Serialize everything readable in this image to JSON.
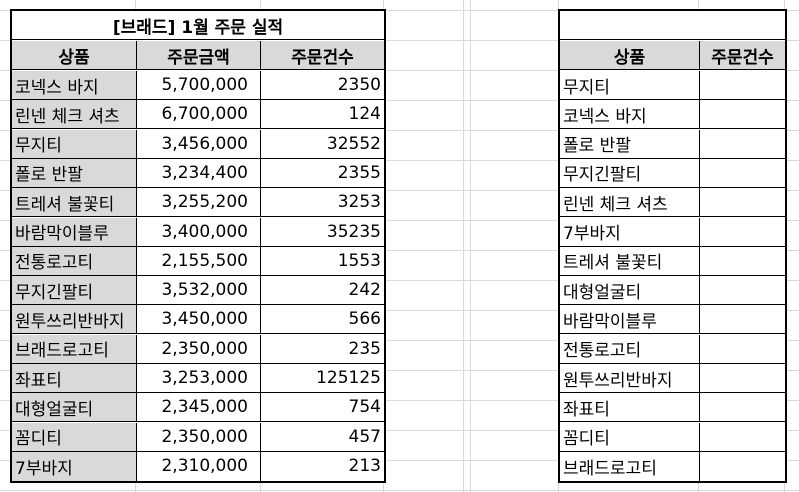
{
  "left_table": {
    "title": "[브래드] 1월 주문 실적",
    "headers": [
      "상품",
      "주문금액",
      "주문건수"
    ],
    "rows": [
      [
        "코넥스 바지",
        "5,700,000",
        "2350"
      ],
      [
        "린넨 체크 셔츠",
        "6,700,000",
        "124"
      ],
      [
        "무지티",
        "3,456,000",
        "32552"
      ],
      [
        "폴로 반팔",
        "3,234,400",
        "2355"
      ],
      [
        "트레셔 불꽃티",
        "3,255,200",
        "3253"
      ],
      [
        "바람막이블루",
        "3,400,000",
        "35235"
      ],
      [
        "전통로고티",
        "2,155,500",
        "1553"
      ],
      [
        "무지긴팔티",
        "3,532,000",
        "242"
      ],
      [
        "원투쓰리반바지",
        "3,450,000",
        "566"
      ],
      [
        "브래드로고티",
        "2,350,000",
        "235"
      ],
      [
        "좌표티",
        "3,253,000",
        "125125"
      ],
      [
        "대형얼굴티",
        "2,345,000",
        "754"
      ],
      [
        "꼼디티",
        "2,350,000",
        "457"
      ],
      [
        "7부바지",
        "2,310,000",
        "213"
      ]
    ]
  },
  "right_table": {
    "headers": [
      "상품",
      "주문건수"
    ],
    "items": [
      "무지티",
      "코넥스 바지",
      "폴로 반팔",
      "무지긴팔티",
      "린넨 체크 셔츠",
      "7부바지",
      "트레셔 불꽃티",
      "대형얼굴티",
      "바람막이블루",
      "전통로고티",
      "원투쓰리반바지",
      "좌표티",
      "꼼디티",
      "브래드로고티"
    ]
  }
}
